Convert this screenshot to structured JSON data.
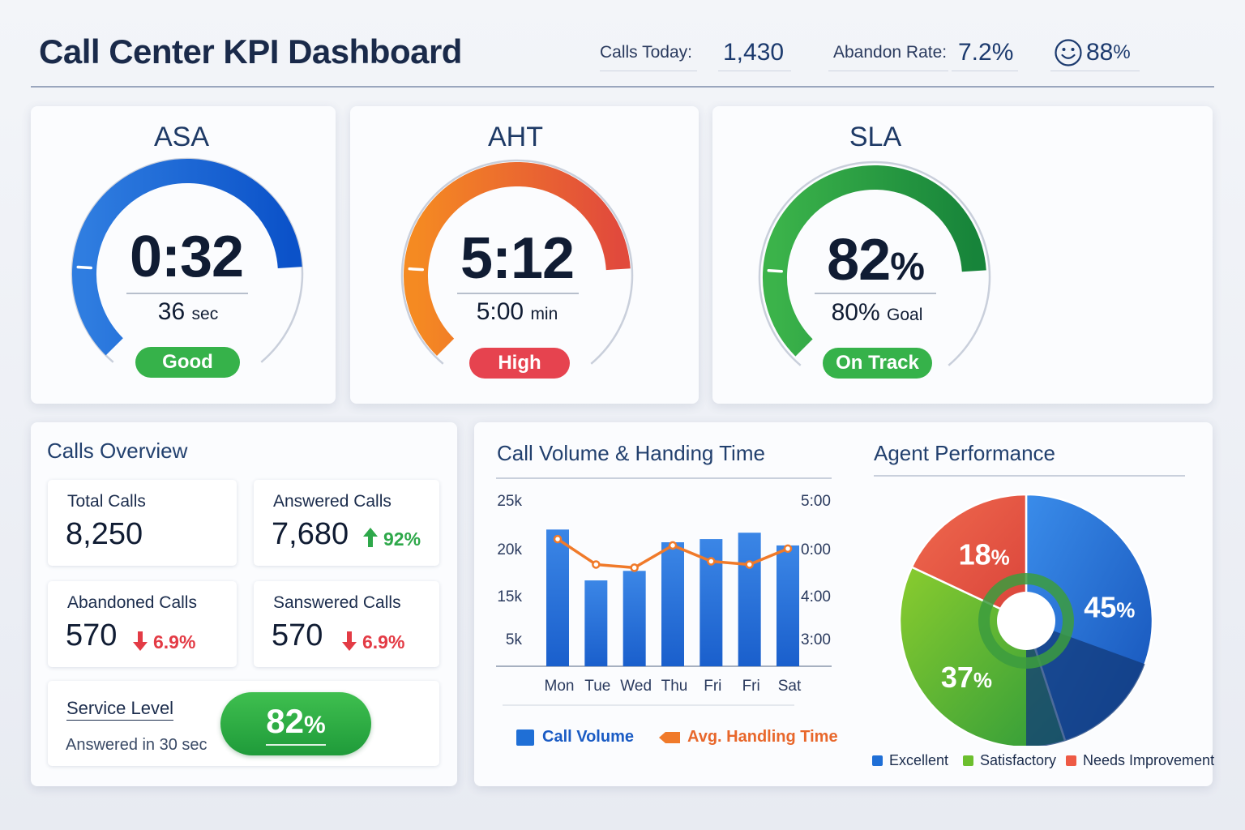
{
  "header": {
    "title": "Call Center KPI Dashboard",
    "calls_today_label": "Calls Today:",
    "calls_today_value": "1,430",
    "abandon_label": "Abandon Rate:",
    "abandon_value": "7.2%",
    "csat_value": "88",
    "csat_unit": "%",
    "csat_icon": "smiley-icon"
  },
  "gauges": {
    "asa": {
      "title": "ASA",
      "value": "0:32",
      "sub_value": "36",
      "sub_unit": "sec",
      "status": "Good",
      "fill": 0.82,
      "color_start": "#2f7de0",
      "color_end": "#0b52c9",
      "status_color": "#36b24a"
    },
    "aht": {
      "title": "AHT",
      "value": "5:12",
      "sub_value": "5:00",
      "sub_unit": "min",
      "status": "High",
      "fill": 0.82,
      "color_start": "#f58a22",
      "color_end": "#e14a3c",
      "status_color": "#e6434f"
    },
    "sla": {
      "title": "SLA",
      "value": "82",
      "value_unit": "%",
      "sub_value": "80%",
      "sub_unit": "Goal",
      "status": "On Track",
      "fill": 0.82,
      "color_start": "#3bb34a",
      "color_end": "#17843a",
      "status_color": "#36b24a"
    }
  },
  "overview": {
    "title": "Calls Overview",
    "total": {
      "label": "Total Calls",
      "value": "8,250"
    },
    "answered": {
      "label": "Answered Calls",
      "value": "7,680",
      "delta": "92%",
      "direction": "up"
    },
    "abandoned": {
      "label": "Abandoned Calls",
      "value": "570",
      "delta": "6.9%",
      "direction": "down"
    },
    "sanswered": {
      "label": "Sanswered Calls",
      "value": "570",
      "delta": "6.9%",
      "direction": "down"
    },
    "service_level": {
      "label": "Service Level",
      "sub": "Answered in 30 sec",
      "value": "82",
      "unit": "%"
    }
  },
  "chart_data": [
    {
      "type": "bar",
      "title": "Call Volume & Handing Time",
      "categories": [
        "Mon",
        "Tue",
        "Wed",
        "Thu",
        "Fri",
        "Fri",
        "Sat"
      ],
      "y_ticks_left": [
        "25k",
        "20k",
        "15k",
        "5k"
      ],
      "y_ticks_right": [
        "5:00",
        "0:00",
        "4:00",
        "3:00"
      ],
      "series": [
        {
          "name": "Call Volume",
          "type": "bar",
          "color": "#1f6fd6",
          "values": [
            21.5,
            13.5,
            15,
            19.5,
            20,
            21,
            19
          ]
        },
        {
          "name": "Avg. Handling Time",
          "type": "line",
          "color": "#f07a2a",
          "values": [
            20,
            16,
            15.5,
            19,
            16.5,
            16,
            18.5
          ]
        }
      ],
      "ylim": [
        0,
        26
      ],
      "grid": false,
      "legend": "bottom"
    },
    {
      "type": "pie",
      "title": "Agent Performance",
      "slices": [
        {
          "name": "Excellent",
          "value": 45,
          "label": "45%",
          "color": "#1f6fd6"
        },
        {
          "name": "Satisfactory",
          "value": 37,
          "label": "37%",
          "color": "#6cbf2e"
        },
        {
          "name": "Needs Improvement",
          "value": 18,
          "label": "18%",
          "color": "#ee5a45"
        }
      ],
      "legend": "bottom"
    }
  ]
}
